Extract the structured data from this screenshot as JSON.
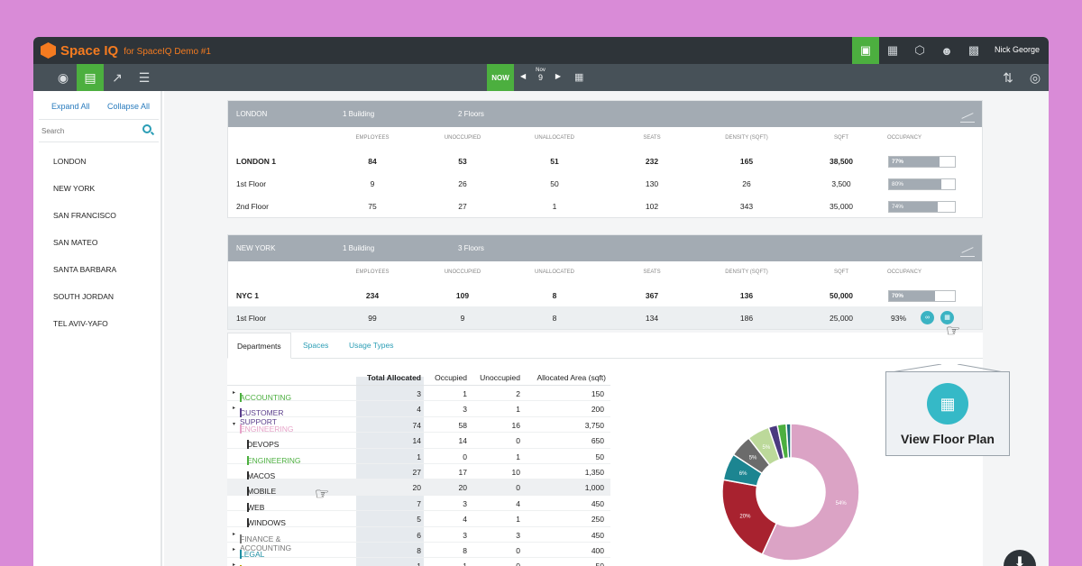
{
  "app": {
    "brand": "Space IQ",
    "subtitle": "for SpaceIQ Demo #1",
    "user": "Nick George"
  },
  "toolbar": {
    "now_label": "NOW",
    "month": "Nov",
    "day": "9"
  },
  "sidebar": {
    "expand_all": "Expand All",
    "collapse_all": "Collapse All",
    "search_placeholder": "Search",
    "locations": [
      "LONDON",
      "NEW YORK",
      "SAN FRANCISCO",
      "SAN MATEO",
      "SANTA BARBARA",
      "SOUTH JORDAN",
      "TEL AVIV-YAFO"
    ]
  },
  "columns": [
    "EMPLOYEES",
    "UNOCCUPIED",
    "UNALLOCATED",
    "SEATS",
    "DENSITY (SQFT)",
    "SQFT",
    "OCCUPANCY"
  ],
  "london": {
    "name": "LONDON",
    "buildings": "1 Building",
    "floors": "2 Floors",
    "rows": [
      {
        "name": "LONDON 1",
        "employees": "84",
        "unoccupied": "53",
        "unallocated": "51",
        "seats": "232",
        "density": "165",
        "sqft": "38,500",
        "occupancy": "77%",
        "occupancy_value": 0.77
      },
      {
        "name": "1st Floor",
        "employees": "9",
        "unoccupied": "26",
        "unallocated": "50",
        "seats": "130",
        "density": "26",
        "sqft": "3,500",
        "occupancy": "80%",
        "occupancy_value": 0.8
      },
      {
        "name": "2nd Floor",
        "employees": "75",
        "unoccupied": "27",
        "unallocated": "1",
        "seats": "102",
        "density": "343",
        "sqft": "35,000",
        "occupancy": "74%",
        "occupancy_value": 0.74
      }
    ]
  },
  "newyork": {
    "name": "NEW YORK",
    "buildings": "1 Building",
    "floors": "3 Floors",
    "rows": [
      {
        "name": "NYC 1",
        "employees": "234",
        "unoccupied": "109",
        "unallocated": "8",
        "seats": "367",
        "density": "136",
        "sqft": "50,000",
        "occupancy": "70%",
        "occupancy_value": 0.7
      },
      {
        "name": "1st Floor",
        "employees": "99",
        "unoccupied": "9",
        "unallocated": "8",
        "seats": "134",
        "density": "186",
        "sqft": "25,000",
        "occupancy": "93%"
      }
    ]
  },
  "tabs": [
    "Departments",
    "Spaces",
    "Usage Types"
  ],
  "dept_headers": [
    "Total Allocated",
    "Occupied",
    "Unoccupied",
    "Allocated Area (sqft)"
  ],
  "departments": [
    {
      "name": "ACCOUNTING",
      "color": "#4caf3f",
      "level": 0,
      "caret": "▸",
      "total": "3",
      "occupied": "1",
      "unoccupied": "2",
      "area": "150"
    },
    {
      "name": "CUSTOMER SUPPORT",
      "color": "#5b3f8c",
      "level": 0,
      "caret": "▸",
      "total": "4",
      "occupied": "3",
      "unoccupied": "1",
      "area": "200"
    },
    {
      "name": "ENGINEERING",
      "color": "#e6a3c8",
      "level": 0,
      "caret": "▾",
      "total": "74",
      "occupied": "58",
      "unoccupied": "16",
      "area": "3,750"
    },
    {
      "name": "DEVOPS",
      "color": "#333333",
      "level": 1,
      "caret": "",
      "total": "14",
      "occupied": "14",
      "unoccupied": "0",
      "area": "650"
    },
    {
      "name": "ENGINEERING",
      "color": "#4caf3f",
      "level": 1,
      "caret": "",
      "total": "1",
      "occupied": "0",
      "unoccupied": "1",
      "area": "50"
    },
    {
      "name": "MACOS",
      "color": "#333333",
      "level": 1,
      "caret": "",
      "total": "27",
      "occupied": "17",
      "unoccupied": "10",
      "area": "1,350"
    },
    {
      "name": "MOBILE",
      "color": "#333333",
      "level": 1,
      "caret": "",
      "total": "20",
      "occupied": "20",
      "unoccupied": "0",
      "area": "1,000"
    },
    {
      "name": "WEB",
      "color": "#333333",
      "level": 1,
      "caret": "",
      "total": "7",
      "occupied": "3",
      "unoccupied": "4",
      "area": "450"
    },
    {
      "name": "WINDOWS",
      "color": "#333333",
      "level": 1,
      "caret": "",
      "total": "5",
      "occupied": "4",
      "unoccupied": "1",
      "area": "250"
    },
    {
      "name": "FINANCE & ACCOUNTING",
      "color": "#777777",
      "level": 0,
      "caret": "▸",
      "total": "6",
      "occupied": "3",
      "unoccupied": "3",
      "area": "450"
    },
    {
      "name": "LEGAL",
      "color": "#1e8fa3",
      "level": 0,
      "caret": "▸",
      "total": "8",
      "occupied": "8",
      "unoccupied": "0",
      "area": "400"
    },
    {
      "name": "OPERATION SERVICES",
      "color": "#b8a100",
      "level": 0,
      "caret": "▸",
      "total": "1",
      "occupied": "1",
      "unoccupied": "0",
      "area": "50"
    }
  ],
  "popup": {
    "label": "View Floor Plan"
  },
  "chart_data": {
    "type": "pie",
    "slices": [
      {
        "label": "54%",
        "value": 54,
        "color": "#dba3c5"
      },
      {
        "label": "20%",
        "value": 20,
        "color": "#a8222f"
      },
      {
        "label": "6%",
        "value": 6,
        "color": "#1c8591"
      },
      {
        "label": "5%",
        "value": 5,
        "color": "#6b6b6b"
      },
      {
        "label": "5%",
        "value": 5,
        "color": "#bcd99a"
      },
      {
        "label": "",
        "value": 2,
        "color": "#4b3a80"
      },
      {
        "label": "",
        "value": 2,
        "color": "#4caf3f"
      },
      {
        "label": "",
        "value": 1,
        "color": "#1e6a7a"
      }
    ]
  }
}
